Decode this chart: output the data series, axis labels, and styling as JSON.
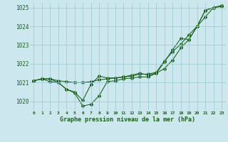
{
  "xlabel": "Graphe pression niveau de la mer (hPa)",
  "ylim": [
    1019.5,
    1025.25
  ],
  "xlim": [
    -0.5,
    23.5
  ],
  "yticks": [
    1020,
    1021,
    1022,
    1023,
    1024,
    1025
  ],
  "xticks": [
    0,
    1,
    2,
    3,
    4,
    5,
    6,
    7,
    8,
    9,
    10,
    11,
    12,
    13,
    14,
    15,
    16,
    17,
    18,
    19,
    20,
    21,
    22,
    23
  ],
  "bg_color": "#cce8ee",
  "grid_color": "#9ecdd6",
  "line_color": "#1a5e1a",
  "line1_x": [
    0,
    1,
    2,
    3,
    4,
    5,
    6,
    7,
    8,
    9,
    10,
    11,
    12,
    13,
    14,
    15,
    16,
    17,
    18,
    19,
    20,
    21,
    22,
    23
  ],
  "line1_y": [
    1021.1,
    1021.2,
    1021.05,
    1021.0,
    1020.65,
    1020.45,
    1019.75,
    1019.85,
    1020.3,
    1021.05,
    1021.1,
    1021.2,
    1021.25,
    1021.3,
    1021.3,
    1021.5,
    1021.75,
    1022.2,
    1022.85,
    1023.3,
    1024.0,
    1024.85,
    1025.0,
    1025.05
  ],
  "line2_x": [
    0,
    1,
    2,
    3,
    4,
    5,
    6,
    7,
    8,
    9,
    10,
    11,
    12,
    13,
    14,
    15,
    16,
    17,
    18,
    19,
    20,
    21,
    22,
    23
  ],
  "line2_y": [
    1021.1,
    1021.2,
    1021.2,
    1021.1,
    1021.05,
    1021.0,
    1021.0,
    1021.05,
    1021.15,
    1021.2,
    1021.25,
    1021.3,
    1021.35,
    1021.45,
    1021.45,
    1021.55,
    1022.15,
    1022.65,
    1023.05,
    1023.55,
    1024.0,
    1024.5,
    1025.0,
    1025.1
  ],
  "line3_x": [
    0,
    1,
    2,
    3,
    4,
    5,
    6,
    7,
    8,
    9,
    10,
    11,
    12,
    13,
    14,
    15,
    16,
    17,
    18,
    19,
    20,
    21,
    22,
    23
  ],
  "line3_y": [
    1021.1,
    1021.2,
    1021.2,
    1021.0,
    1020.65,
    1020.5,
    1020.05,
    1020.9,
    1021.35,
    1021.25,
    1021.25,
    1021.3,
    1021.4,
    1021.5,
    1021.4,
    1021.5,
    1022.1,
    1022.75,
    1023.35,
    1023.3,
    1024.0,
    1024.85,
    1025.0,
    1025.1
  ],
  "figsize": [
    3.2,
    2.0
  ],
  "dpi": 100
}
